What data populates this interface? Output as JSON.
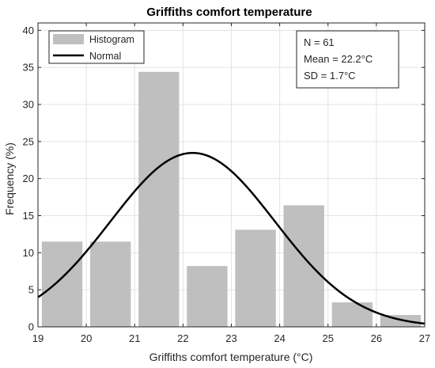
{
  "chart_data": {
    "type": "bar",
    "title": "Griffiths comfort temperature",
    "xlabel": "Griffiths comfort temperature (°C)",
    "ylabel": "Frequency (%)",
    "xlim": [
      19,
      27
    ],
    "ylim": [
      0,
      41
    ],
    "xticks": [
      "19",
      "20",
      "21",
      "22",
      "23",
      "24",
      "25",
      "26",
      "27"
    ],
    "yticks": [
      "0",
      "5",
      "10",
      "15",
      "20",
      "25",
      "30",
      "35",
      "40"
    ],
    "grid": true,
    "legend_position": "top-left",
    "bins": [
      {
        "start": 19,
        "end": 20,
        "value": 11.5
      },
      {
        "start": 20,
        "end": 21,
        "value": 11.5
      },
      {
        "start": 21,
        "end": 22,
        "value": 34.4
      },
      {
        "start": 22,
        "end": 23,
        "value": 8.2
      },
      {
        "start": 23,
        "end": 24,
        "value": 13.1
      },
      {
        "start": 24,
        "end": 25,
        "value": 16.4
      },
      {
        "start": 25,
        "end": 26,
        "value": 3.3
      },
      {
        "start": 26,
        "end": 27,
        "value": 1.6
      }
    ],
    "series": [
      {
        "name": "Histogram",
        "kind": "bar",
        "color": "#bfbfbf"
      },
      {
        "name": "Normal",
        "kind": "line",
        "color": "#000000",
        "mean": 22.2,
        "sd": 1.7
      }
    ],
    "stats": {
      "n": "N = 61",
      "mean": "Mean = 22.2°C",
      "sd": "SD = 1.7°C"
    }
  }
}
